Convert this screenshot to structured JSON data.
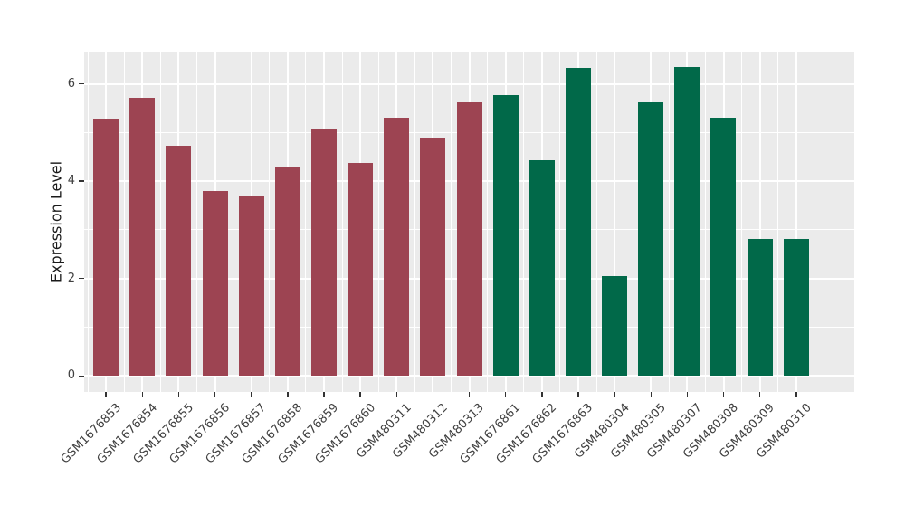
{
  "chart_data": {
    "type": "bar",
    "title": "",
    "xlabel": "",
    "ylabel": "Expression Level",
    "ylim": [
      -0.33,
      6.66
    ],
    "yticks": [
      0,
      2,
      4,
      6
    ],
    "yticks_minor": [
      1,
      3,
      5
    ],
    "grid": "on",
    "legend": "none",
    "panel_bg": "#EBEBEB",
    "grid_color": "#FFFFFF",
    "tick_mark_color": "#333333",
    "axis_text_color": "#404040",
    "axis_title_color": "#1A1A1A",
    "bar_groups": [
      {
        "name": "maroon-group",
        "color": "#9D4452"
      },
      {
        "name": "green-group",
        "color": "#016949"
      }
    ],
    "categories": [
      "GSM1676853",
      "GSM1676854",
      "GSM1676855",
      "GSM1676856",
      "GSM1676857",
      "GSM1676858",
      "GSM1676859",
      "GSM1676860",
      "GSM480311",
      "GSM480312",
      "GSM480313",
      "GSM1676861",
      "GSM1676862",
      "GSM1676863",
      "GSM480304",
      "GSM480305",
      "GSM480307",
      "GSM480308",
      "GSM480309",
      "GSM480310"
    ],
    "values": [
      5.29,
      5.72,
      4.73,
      3.8,
      3.71,
      4.29,
      5.06,
      4.37,
      5.31,
      4.88,
      5.62,
      5.77,
      4.43,
      6.33,
      2.05,
      5.62,
      6.34,
      5.3,
      2.81,
      2.82
    ],
    "bars": [
      {
        "label": "GSM1676853",
        "value": 5.29,
        "group": 0
      },
      {
        "label": "GSM1676854",
        "value": 5.72,
        "group": 0
      },
      {
        "label": "GSM1676855",
        "value": 4.73,
        "group": 0
      },
      {
        "label": "GSM1676856",
        "value": 3.8,
        "group": 0
      },
      {
        "label": "GSM1676857",
        "value": 3.71,
        "group": 0
      },
      {
        "label": "GSM1676858",
        "value": 4.29,
        "group": 0
      },
      {
        "label": "GSM1676859",
        "value": 5.06,
        "group": 0
      },
      {
        "label": "GSM1676860",
        "value": 4.37,
        "group": 0
      },
      {
        "label": "GSM480311",
        "value": 5.31,
        "group": 0
      },
      {
        "label": "GSM480312",
        "value": 4.88,
        "group": 0
      },
      {
        "label": "GSM480313",
        "value": 5.62,
        "group": 0
      },
      {
        "label": "GSM1676861",
        "value": 5.77,
        "group": 1
      },
      {
        "label": "GSM1676862",
        "value": 4.43,
        "group": 1
      },
      {
        "label": "GSM1676863",
        "value": 6.33,
        "group": 1
      },
      {
        "label": "GSM480304",
        "value": 2.05,
        "group": 1
      },
      {
        "label": "GSM480305",
        "value": 5.62,
        "group": 1
      },
      {
        "label": "GSM480307",
        "value": 6.34,
        "group": 1
      },
      {
        "label": "GSM480308",
        "value": 5.3,
        "group": 1
      },
      {
        "label": "GSM480309",
        "value": 2.81,
        "group": 1
      },
      {
        "label": "GSM480310",
        "value": 2.82,
        "group": 1
      }
    ]
  }
}
